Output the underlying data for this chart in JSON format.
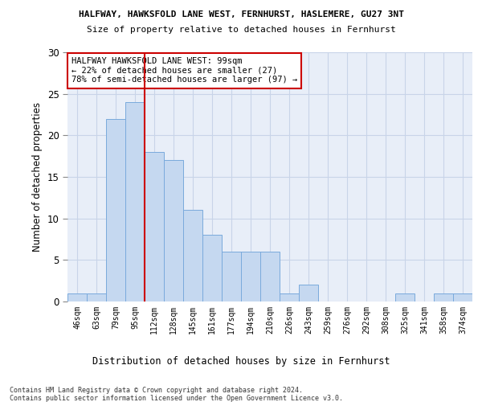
{
  "title1": "HALFWAY, HAWKSFOLD LANE WEST, FERNHURST, HASLEMERE, GU27 3NT",
  "title2": "Size of property relative to detached houses in Fernhurst",
  "xlabel_bottom": "Distribution of detached houses by size in Fernhurst",
  "ylabel": "Number of detached properties",
  "categories": [
    "46sqm",
    "63sqm",
    "79sqm",
    "95sqm",
    "112sqm",
    "128sqm",
    "145sqm",
    "161sqm",
    "177sqm",
    "194sqm",
    "210sqm",
    "226sqm",
    "243sqm",
    "259sqm",
    "276sqm",
    "292sqm",
    "308sqm",
    "325sqm",
    "341sqm",
    "358sqm",
    "374sqm"
  ],
  "values": [
    1,
    1,
    22,
    24,
    18,
    17,
    11,
    8,
    6,
    6,
    6,
    1,
    2,
    0,
    0,
    0,
    0,
    1,
    0,
    1,
    1
  ],
  "bar_color": "#c5d8f0",
  "bar_edge_color": "#7aaadc",
  "grid_color": "#c8d4e8",
  "vline_color": "#cc0000",
  "vline_x_index": 3.5,
  "annotation_text": "HALFWAY HAWKSFOLD LANE WEST: 99sqm\n← 22% of detached houses are smaller (27)\n78% of semi-detached houses are larger (97) →",
  "annotation_box_color": "white",
  "annotation_box_edge": "#cc0000",
  "footnote": "Contains HM Land Registry data © Crown copyright and database right 2024.\nContains public sector information licensed under the Open Government Licence v3.0.",
  "ylim": [
    0,
    30
  ],
  "yticks": [
    0,
    5,
    10,
    15,
    20,
    25,
    30
  ],
  "bg_color": "#ffffff"
}
